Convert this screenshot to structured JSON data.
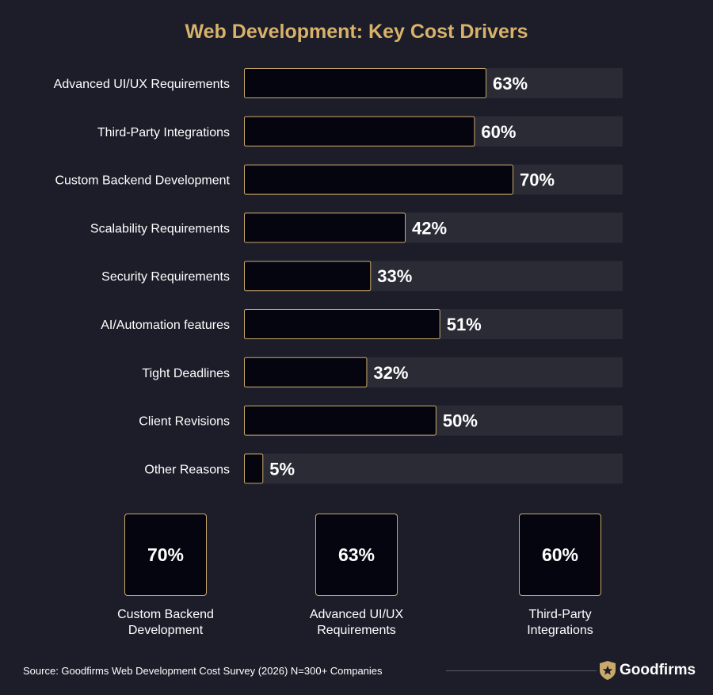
{
  "chart_data": {
    "type": "bar",
    "orientation": "horizontal",
    "title": "Web Development: Key Cost Drivers",
    "categories": [
      "Advanced UI/UX Requirements",
      "Third-Party Integrations",
      "Custom Backend Development",
      "Scalability Requirements",
      "Security Requirements",
      "AI/Automation features",
      "Tight Deadlines",
      "Client Revisions",
      "Other Reasons"
    ],
    "values": [
      63,
      60,
      70,
      42,
      33,
      51,
      32,
      50,
      5
    ],
    "value_labels": [
      "63%",
      "60%",
      "70%",
      "42%",
      "33%",
      "51%",
      "32%",
      "50%",
      "5%"
    ],
    "xlim": [
      0,
      100
    ],
    "grid": false,
    "colors": {
      "bar_fill": "#050510",
      "bar_border": "#c9a86b",
      "track": "#2a2b35",
      "title": "#d9b26a"
    }
  },
  "highlights": [
    {
      "value": "70%",
      "caption_line1": "Custom Backend",
      "caption_line2": "Development"
    },
    {
      "value": "63%",
      "caption_line1": "Advanced UI/UX",
      "caption_line2": "Requirements"
    },
    {
      "value": "60%",
      "caption_line1": "Third-Party",
      "caption_line2": "Integrations"
    }
  ],
  "footer": {
    "source": "Source: Goodfirms Web Development Cost Survey (2026) N=300+ Companies",
    "brand": "Goodfirms",
    "brand_icon": "shield-star-icon"
  }
}
